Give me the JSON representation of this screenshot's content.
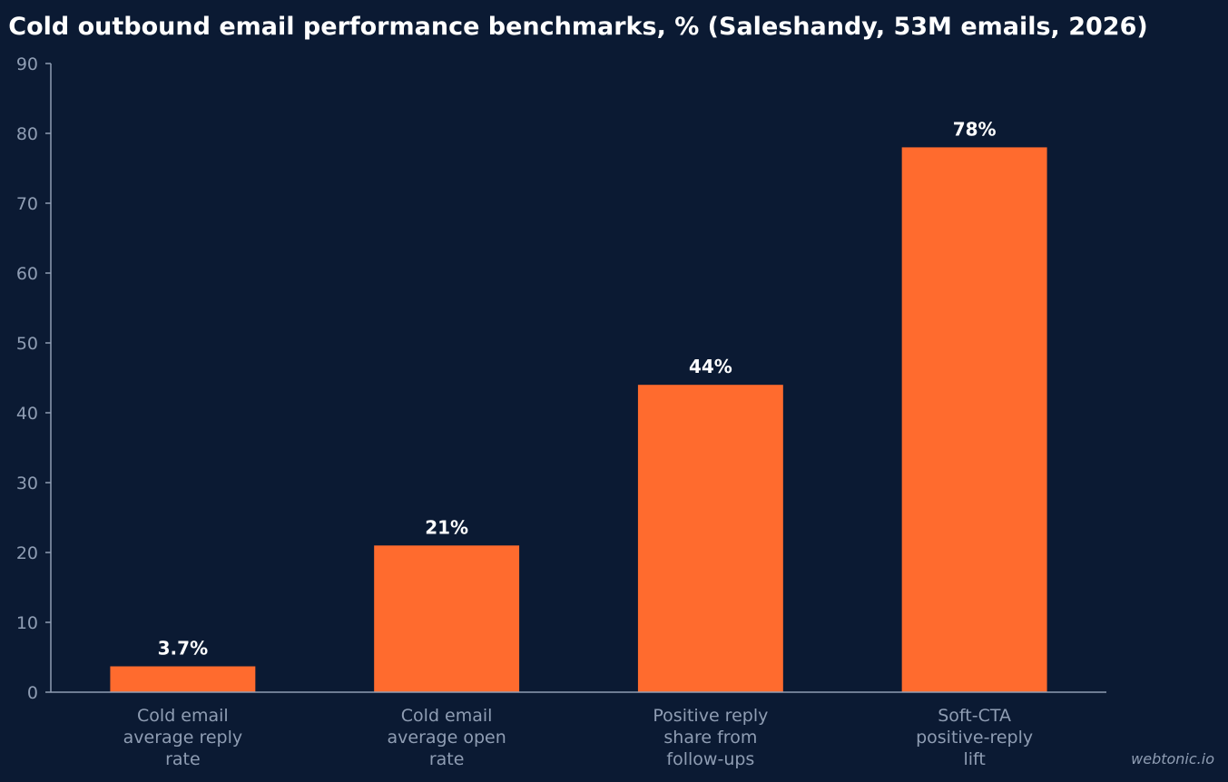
{
  "chart_data": {
    "type": "bar",
    "title": "Cold outbound email performance benchmarks, % (Saleshandy, 53M emails, 2026)",
    "xlabel": "",
    "ylabel": "",
    "categories": [
      [
        "Cold email",
        "average reply",
        "rate"
      ],
      [
        "Cold email",
        "average open",
        "rate"
      ],
      [
        "Positive reply",
        "share from",
        "follow-ups"
      ],
      [
        "Soft-CTA",
        "positive-reply",
        "lift"
      ]
    ],
    "values": [
      3.7,
      21,
      44,
      78
    ],
    "data_labels": [
      "3.7%",
      "21%",
      "44%",
      "78%"
    ],
    "ylim": [
      0,
      90
    ],
    "yticks": [
      0,
      10,
      20,
      30,
      40,
      50,
      60,
      70,
      80,
      90
    ],
    "grid": false,
    "colors": {
      "background": "#0b1a33",
      "bar": "#ff6b2e",
      "axis": "#8f9db3",
      "title": "#ffffff"
    }
  },
  "watermark": "webtonic.io"
}
